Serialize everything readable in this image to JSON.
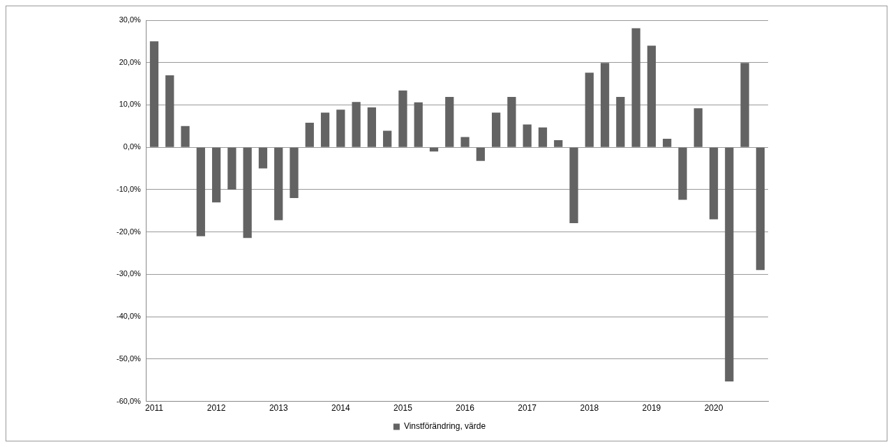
{
  "chart_data": {
    "type": "bar",
    "categories": [
      "2011",
      null,
      null,
      null,
      "2012",
      null,
      null,
      null,
      "2013",
      null,
      null,
      null,
      "2014",
      null,
      null,
      null,
      "2015",
      null,
      null,
      null,
      "2016",
      null,
      null,
      null,
      "2017",
      null,
      null,
      null,
      "2018",
      null,
      null,
      null,
      "2019",
      null,
      null,
      null,
      "2020",
      null,
      null,
      null
    ],
    "series": [
      {
        "name": "Vinstförändring, värde",
        "color": "#636363",
        "values": [
          25.0,
          17.0,
          5.0,
          -21.0,
          -13.0,
          -10.0,
          -21.4,
          -5.0,
          -17.2,
          -12.0,
          5.8,
          8.2,
          8.9,
          10.7,
          9.4,
          3.9,
          13.4,
          10.6,
          -1.0,
          11.9,
          2.4,
          -3.2,
          8.2,
          11.9,
          5.4,
          4.7,
          1.7,
          -17.9,
          17.6,
          19.9,
          11.9,
          28.1,
          24.0,
          2.0,
          -12.4,
          9.2,
          -17.0,
          -55.3,
          19.9,
          -29.0
        ]
      }
    ],
    "ylim": [
      -60,
      30
    ],
    "yticks": [
      {
        "value": -60,
        "label": "-60,0%"
      },
      {
        "value": -50,
        "label": "-50,0%"
      },
      {
        "value": -40,
        "label": "-40,0%"
      },
      {
        "value": -30,
        "label": "-30,0%"
      },
      {
        "value": -20,
        "label": "-20,0%"
      },
      {
        "value": -10,
        "label": "-10,0%"
      },
      {
        "value": 0,
        "label": "0,0%"
      },
      {
        "value": 10,
        "label": "10,0%"
      },
      {
        "value": 20,
        "label": "20,0%"
      },
      {
        "value": 30,
        "label": "30,0%"
      }
    ],
    "grid": "y",
    "legend": "bottom"
  }
}
